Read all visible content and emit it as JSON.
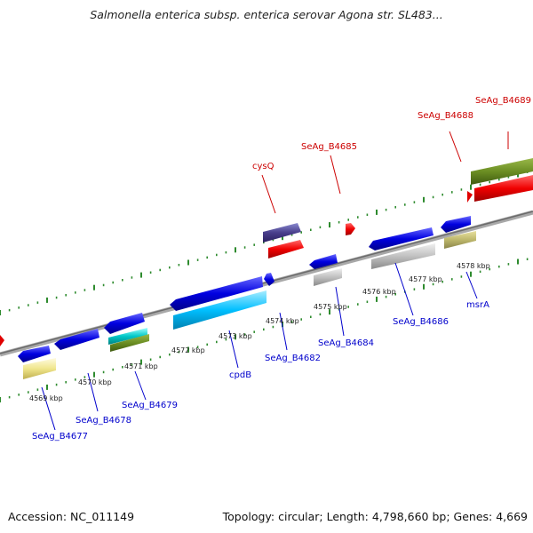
{
  "title": "Salmonella enterica subsp. enterica serovar Agona str. SL483...",
  "footer": {
    "accession": "Accession: NC_011149",
    "summary": "Topology: circular; Length: 4,798,660 bp; Genes: 4,669"
  },
  "colors": {
    "backbone": "#8a8a8a",
    "tick": "#2e8b2e",
    "label_plus_strand": "#cc0000",
    "label_minus_strand": "#0000cc",
    "leader_red": "#cc0000",
    "leader_blue": "#0000cc"
  },
  "scale_labels": [
    "4569 kbp",
    "4570 kbp",
    "4571 kbp",
    "4572 kbp",
    "4573 kbp",
    "4574 kbp",
    "4575 kbp",
    "4576 kbp",
    "4577 kbp",
    "4578 kbp"
  ],
  "gene_labels": [
    {
      "text": "SeAg_B4689",
      "strand": "plus"
    },
    {
      "text": "SeAg_B4688",
      "strand": "plus"
    },
    {
      "text": "SeAg_B4685",
      "strand": "plus"
    },
    {
      "text": "cysQ",
      "strand": "plus"
    },
    {
      "text": "SeAg_B4686",
      "strand": "minus"
    },
    {
      "text": "msrA",
      "strand": "minus"
    },
    {
      "text": "SeAg_B4684",
      "strand": "minus"
    },
    {
      "text": "SeAg_B4682",
      "strand": "minus"
    },
    {
      "text": "cpdB",
      "strand": "minus"
    },
    {
      "text": "SeAg_B4679",
      "strand": "minus"
    },
    {
      "text": "SeAg_B4678",
      "strand": "minus"
    },
    {
      "text": "SeAg_B4677",
      "strand": "minus"
    }
  ]
}
